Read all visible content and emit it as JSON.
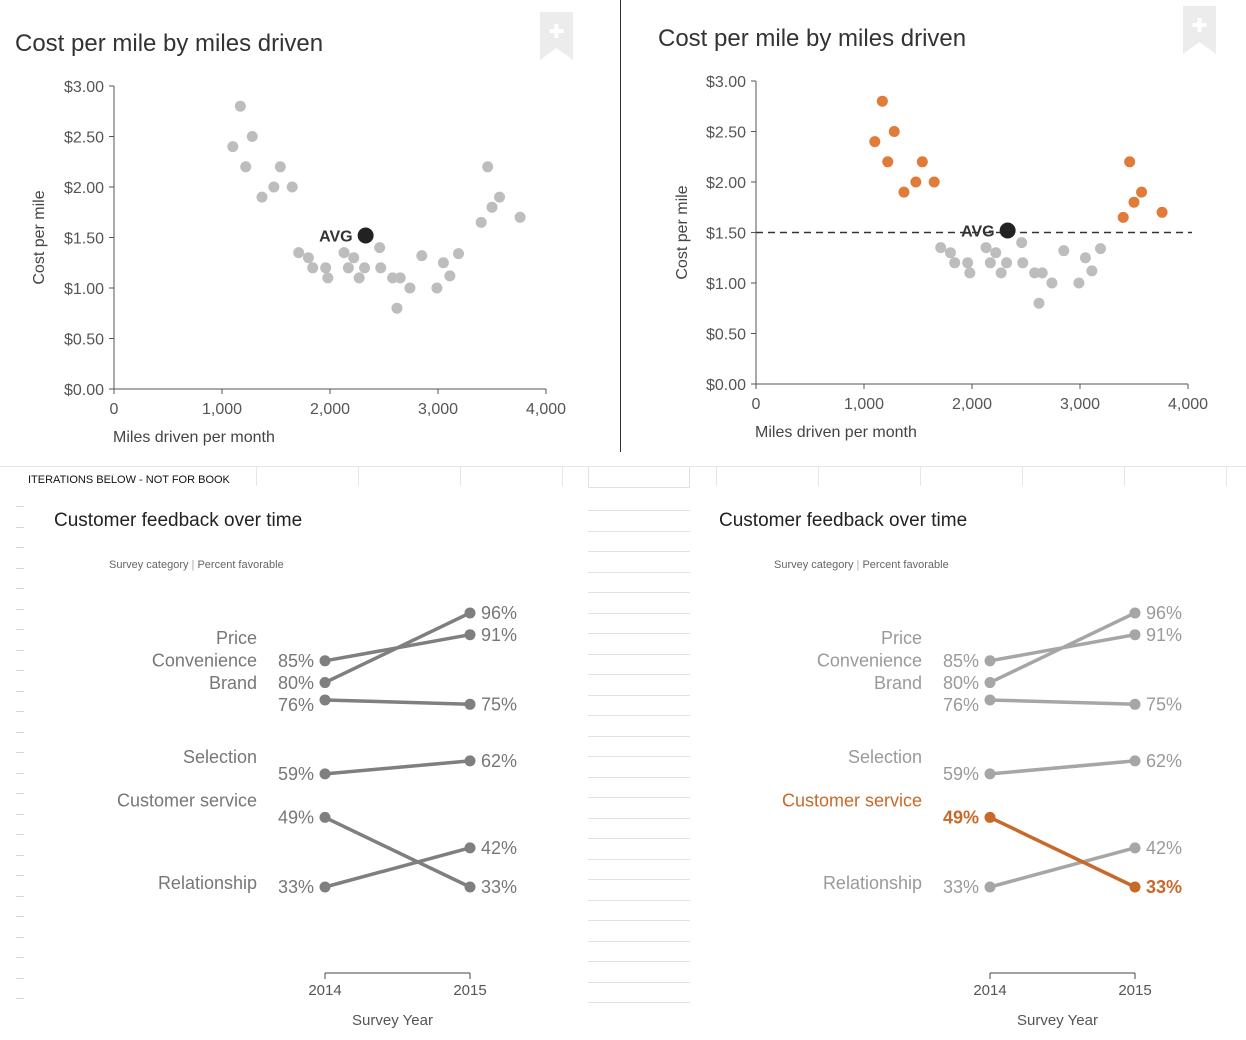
{
  "iterations_note": "ITERATIONS BELOW - NOT FOR BOOK",
  "colors": {
    "gray_point": "#bdbdbd",
    "highlight_point": "#e07b39",
    "avg_point": "#222222",
    "slope_gray_dark": "#7f7f7f",
    "slope_gray_light": "#a6a6a6",
    "slope_highlight": "#c8692a",
    "bookmark": "#ececec"
  },
  "chart_data": [
    {
      "type": "scatter",
      "title": "Cost per mile by miles driven",
      "xlabel": "Miles driven per month",
      "ylabel": "Cost per mile",
      "xlim": [
        0,
        4000
      ],
      "ylim": [
        0,
        3
      ],
      "xticks": [
        "0",
        "1,000",
        "2,000",
        "3,000",
        "4,000"
      ],
      "yticks": [
        "$0.00",
        "$0.50",
        "$1.00",
        "$1.50",
        "$2.00",
        "$2.50",
        "$3.00"
      ],
      "avg_label": "AVG",
      "avg_point": {
        "x": 2330,
        "y": 1.52
      },
      "avg_line": false,
      "highlight_outliers": false,
      "grid": false,
      "points": [
        {
          "x": 1100,
          "y": 2.4
        },
        {
          "x": 1170,
          "y": 2.8
        },
        {
          "x": 1220,
          "y": 2.2
        },
        {
          "x": 1280,
          "y": 2.5
        },
        {
          "x": 1370,
          "y": 1.9
        },
        {
          "x": 1480,
          "y": 2.0
        },
        {
          "x": 1540,
          "y": 2.2
        },
        {
          "x": 1650,
          "y": 2.0
        },
        {
          "x": 1710,
          "y": 1.35
        },
        {
          "x": 1800,
          "y": 1.3
        },
        {
          "x": 1840,
          "y": 1.2
        },
        {
          "x": 1960,
          "y": 1.2
        },
        {
          "x": 1980,
          "y": 1.1
        },
        {
          "x": 2130,
          "y": 1.35
        },
        {
          "x": 2170,
          "y": 1.2
        },
        {
          "x": 2220,
          "y": 1.3
        },
        {
          "x": 2270,
          "y": 1.1
        },
        {
          "x": 2320,
          "y": 1.2
        },
        {
          "x": 2460,
          "y": 1.4
        },
        {
          "x": 2470,
          "y": 1.2
        },
        {
          "x": 2580,
          "y": 1.1
        },
        {
          "x": 2620,
          "y": 0.8
        },
        {
          "x": 2650,
          "y": 1.1
        },
        {
          "x": 2740,
          "y": 1.0
        },
        {
          "x": 2850,
          "y": 1.32
        },
        {
          "x": 2990,
          "y": 1.0
        },
        {
          "x": 3050,
          "y": 1.25
        },
        {
          "x": 3110,
          "y": 1.12
        },
        {
          "x": 3190,
          "y": 1.34
        },
        {
          "x": 3400,
          "y": 1.65
        },
        {
          "x": 3460,
          "y": 2.2
        },
        {
          "x": 3500,
          "y": 1.8
        },
        {
          "x": 3570,
          "y": 1.9
        },
        {
          "x": 3760,
          "y": 1.7
        }
      ]
    },
    {
      "type": "scatter",
      "title": "Cost per mile by miles driven",
      "xlabel": "Miles driven per month",
      "ylabel": "Cost per mile",
      "xlim": [
        0,
        4000
      ],
      "ylim": [
        0,
        3
      ],
      "xticks": [
        "0",
        "1,000",
        "2,000",
        "3,000",
        "4,000"
      ],
      "yticks": [
        "$0.00",
        "$0.50",
        "$1.00",
        "$1.50",
        "$2.00",
        "$2.50",
        "$3.00"
      ],
      "avg_label": "AVG",
      "avg_point": {
        "x": 2330,
        "y": 1.52
      },
      "avg_line": true,
      "avg_line_value": 1.5,
      "highlight_outliers": true,
      "grid": false,
      "points": [
        {
          "x": 1100,
          "y": 2.4
        },
        {
          "x": 1170,
          "y": 2.8
        },
        {
          "x": 1220,
          "y": 2.2
        },
        {
          "x": 1280,
          "y": 2.5
        },
        {
          "x": 1370,
          "y": 1.9
        },
        {
          "x": 1480,
          "y": 2.0
        },
        {
          "x": 1540,
          "y": 2.2
        },
        {
          "x": 1650,
          "y": 2.0
        },
        {
          "x": 1710,
          "y": 1.35
        },
        {
          "x": 1800,
          "y": 1.3
        },
        {
          "x": 1840,
          "y": 1.2
        },
        {
          "x": 1960,
          "y": 1.2
        },
        {
          "x": 1980,
          "y": 1.1
        },
        {
          "x": 2130,
          "y": 1.35
        },
        {
          "x": 2170,
          "y": 1.2
        },
        {
          "x": 2220,
          "y": 1.3
        },
        {
          "x": 2270,
          "y": 1.1
        },
        {
          "x": 2320,
          "y": 1.2
        },
        {
          "x": 2460,
          "y": 1.4
        },
        {
          "x": 2470,
          "y": 1.2
        },
        {
          "x": 2580,
          "y": 1.1
        },
        {
          "x": 2620,
          "y": 0.8
        },
        {
          "x": 2650,
          "y": 1.1
        },
        {
          "x": 2740,
          "y": 1.0
        },
        {
          "x": 2850,
          "y": 1.32
        },
        {
          "x": 2990,
          "y": 1.0
        },
        {
          "x": 3050,
          "y": 1.25
        },
        {
          "x": 3110,
          "y": 1.12
        },
        {
          "x": 3190,
          "y": 1.34
        },
        {
          "x": 3400,
          "y": 1.65
        },
        {
          "x": 3460,
          "y": 2.2
        },
        {
          "x": 3500,
          "y": 1.8
        },
        {
          "x": 3570,
          "y": 1.9
        },
        {
          "x": 3760,
          "y": 1.7
        }
      ]
    },
    {
      "type": "line",
      "title": "Customer feedback over time",
      "subtitle_left": "Survey category",
      "subtitle_right": "Percent favorable",
      "xlabel": "Survey Year",
      "categories": [
        "2014",
        "2015"
      ],
      "highlight": null,
      "series": [
        {
          "name": "Price",
          "values": [
            85,
            91
          ]
        },
        {
          "name": "Convenience",
          "values": [
            80,
            96
          ]
        },
        {
          "name": "Brand",
          "values": [
            76,
            75
          ]
        },
        {
          "name": "Selection",
          "values": [
            59,
            62
          ]
        },
        {
          "name": "Customer service",
          "values": [
            49,
            33
          ]
        },
        {
          "name": "Relationship",
          "values": [
            33,
            42
          ]
        }
      ]
    },
    {
      "type": "line",
      "title": "Customer feedback over time",
      "subtitle_left": "Survey category",
      "subtitle_right": "Percent favorable",
      "xlabel": "Survey Year",
      "categories": [
        "2014",
        "2015"
      ],
      "highlight": "Customer service",
      "series": [
        {
          "name": "Price",
          "values": [
            85,
            91
          ]
        },
        {
          "name": "Convenience",
          "values": [
            80,
            96
          ]
        },
        {
          "name": "Brand",
          "values": [
            76,
            75
          ]
        },
        {
          "name": "Selection",
          "values": [
            59,
            62
          ]
        },
        {
          "name": "Customer service",
          "values": [
            49,
            33
          ]
        },
        {
          "name": "Relationship",
          "values": [
            33,
            42
          ]
        }
      ]
    }
  ]
}
